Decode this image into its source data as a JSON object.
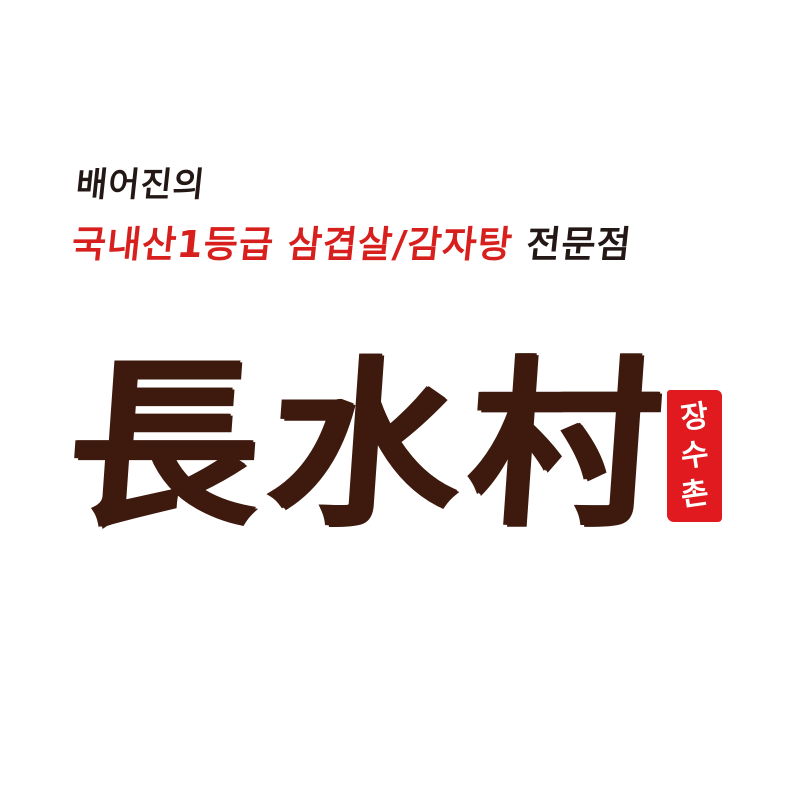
{
  "tagline": {
    "line1": "배어진의",
    "line2_red": "국내산1등급 삼겹살/감자탕",
    "line2_dark": "전문점"
  },
  "logo": {
    "hanja_chars": [
      "長",
      "水",
      "村"
    ],
    "seal_chars": [
      "장",
      "수",
      "촌"
    ]
  },
  "colors": {
    "background": "#ffffff",
    "text_dark": "#231815",
    "text_red": "#d7201d",
    "logo_brown": "#3e1a0e",
    "seal_red": "#e01a1e"
  }
}
